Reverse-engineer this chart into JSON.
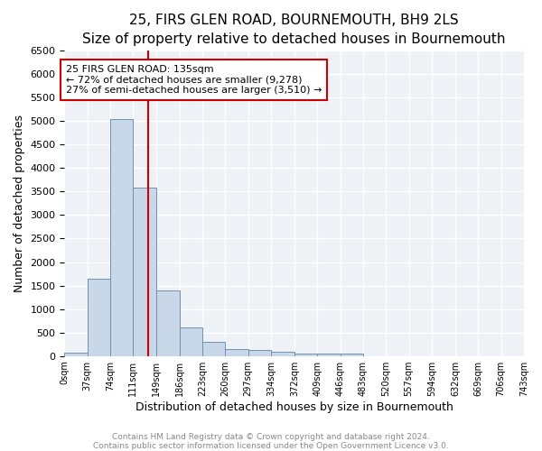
{
  "title": "25, FIRS GLEN ROAD, BOURNEMOUTH, BH9 2LS",
  "subtitle": "Size of property relative to detached houses in Bournemouth",
  "xlabel": "Distribution of detached houses by size in Bournemouth",
  "ylabel": "Number of detached properties",
  "bin_edges": [
    0,
    37,
    74,
    111,
    149,
    186,
    223,
    260,
    297,
    334,
    372,
    409,
    446,
    483,
    520,
    557,
    594,
    632,
    669,
    706,
    743
  ],
  "bin_labels": [
    "0sqm",
    "37sqm",
    "74sqm",
    "111sqm",
    "149sqm",
    "186sqm",
    "223sqm",
    "260sqm",
    "297sqm",
    "334sqm",
    "372sqm",
    "409sqm",
    "446sqm",
    "483sqm",
    "520sqm",
    "557sqm",
    "594sqm",
    "632sqm",
    "669sqm",
    "706sqm",
    "743sqm"
  ],
  "counts": [
    75,
    1650,
    5050,
    3580,
    1400,
    600,
    300,
    155,
    130,
    95,
    55,
    55,
    55,
    0,
    0,
    0,
    0,
    0,
    0,
    0
  ],
  "bar_color": "#c8d8e8",
  "bar_edge_color": "#7090b0",
  "vline_x": 135,
  "vline_color": "#cc0000",
  "annotation_text": "25 FIRS GLEN ROAD: 135sqm\n← 72% of detached houses are smaller (9,278)\n27% of semi-detached houses are larger (3,510) →",
  "annotation_box_color": "white",
  "annotation_box_edge_color": "#cc0000",
  "ylim": [
    0,
    6500
  ],
  "yticks": [
    0,
    500,
    1000,
    1500,
    2000,
    2500,
    3000,
    3500,
    4000,
    4500,
    5000,
    5500,
    6000,
    6500
  ],
  "footnote1": "Contains HM Land Registry data © Crown copyright and database right 2024.",
  "footnote2": "Contains public sector information licensed under the Open Government Licence v3.0.",
  "background_color": "#eef2f7",
  "grid_color": "#ffffff",
  "title_fontsize": 11,
  "subtitle_fontsize": 9
}
